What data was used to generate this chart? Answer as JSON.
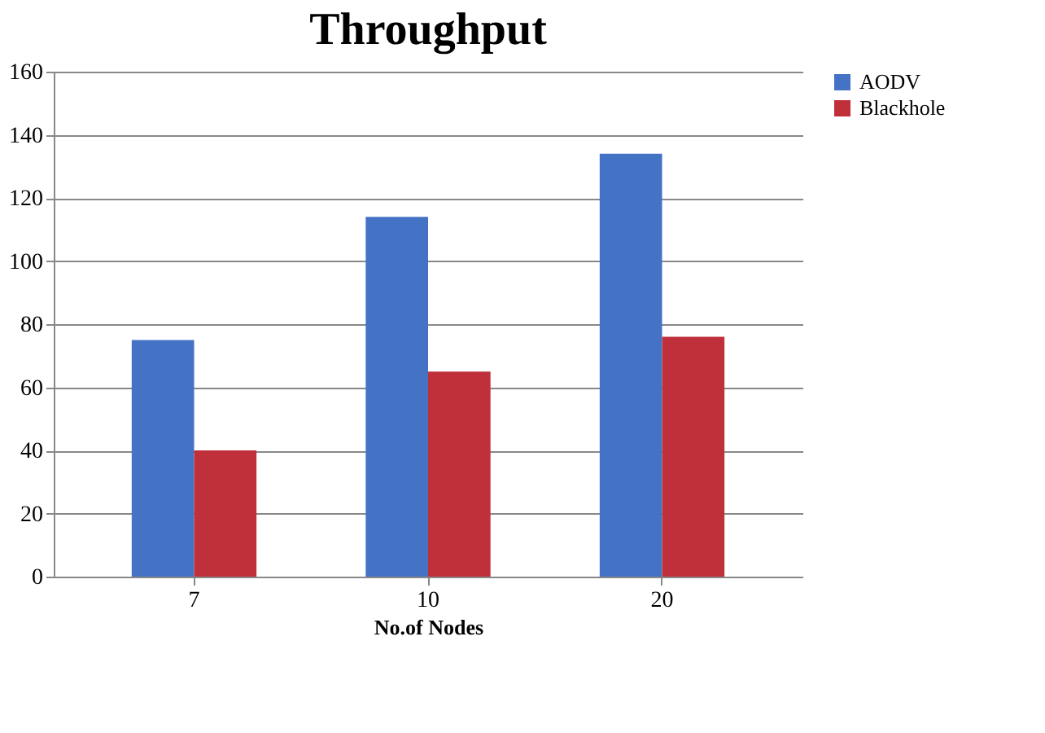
{
  "chart_data": {
    "type": "bar",
    "title": "Throughput",
    "xlabel": "No.of Nodes",
    "categories": [
      "7",
      "10",
      "20"
    ],
    "series": [
      {
        "name": "AODV",
        "color": "#4472c4",
        "values": [
          75,
          114,
          134
        ]
      },
      {
        "name": "Blackhole",
        "color": "#c0303a",
        "values": [
          40,
          65,
          76
        ]
      }
    ],
    "ylim": [
      0,
      160
    ],
    "yticks": [
      0,
      20,
      40,
      60,
      80,
      100,
      120,
      140,
      160
    ],
    "grid": "y",
    "legend": "right"
  }
}
